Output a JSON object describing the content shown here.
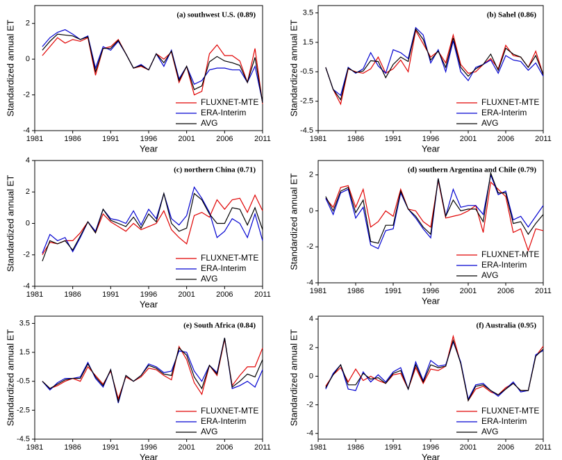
{
  "chart_data": [
    {
      "type": "line",
      "title": "(a) southwest U.S. (0.89)",
      "xlabel": "Year",
      "ylabel": "Standardized annual ET",
      "x": [
        1982,
        1983,
        1984,
        1985,
        1986,
        1987,
        1988,
        1989,
        1990,
        1991,
        1992,
        1993,
        1994,
        1995,
        1996,
        1997,
        1998,
        1999,
        2000,
        2001,
        2002,
        2003,
        2004,
        2005,
        2006,
        2007,
        2008,
        2009,
        2010,
        2011
      ],
      "xlim": [
        1981,
        2011
      ],
      "xticks": [
        1981,
        1986,
        1991,
        1996,
        2001,
        2006,
        2011
      ],
      "ylim": [
        -4,
        3
      ],
      "yticks": [
        -4,
        -2,
        0,
        2
      ],
      "legend": "lower right",
      "series": [
        {
          "name": "FLUXNET-MTE",
          "color": "#e00000",
          "values": [
            0.2,
            0.7,
            1.2,
            0.9,
            1.1,
            1.0,
            1.2,
            -0.9,
            0.6,
            0.7,
            1.1,
            0.3,
            -0.5,
            -0.4,
            -0.6,
            0.3,
            0.0,
            0.4,
            -1.3,
            -0.4,
            -2.0,
            -1.8,
            0.3,
            0.8,
            0.2,
            0.2,
            -0.1,
            -1.3,
            0.6,
            -2.5
          ]
        },
        {
          "name": "ERA-Interim",
          "color": "#0000d0",
          "values": [
            0.7,
            1.2,
            1.5,
            1.65,
            1.4,
            1.1,
            1.3,
            -0.5,
            0.7,
            0.5,
            1.0,
            0.3,
            -0.5,
            -0.3,
            -0.6,
            0.3,
            -0.4,
            0.5,
            -1.1,
            -0.4,
            -1.4,
            -1.2,
            -0.6,
            -0.5,
            -0.5,
            -0.6,
            -0.6,
            -1.3,
            -0.4,
            -2.4
          ]
        },
        {
          "name": "AVG",
          "color": "#000000",
          "values": [
            0.5,
            1.0,
            1.4,
            1.35,
            1.3,
            1.1,
            1.25,
            -0.7,
            0.6,
            0.6,
            1.05,
            0.3,
            -0.5,
            -0.35,
            -0.6,
            0.3,
            -0.2,
            0.45,
            -1.2,
            -0.4,
            -1.7,
            -1.5,
            -0.15,
            0.15,
            -0.1,
            -0.2,
            -0.35,
            -1.3,
            0.1,
            -2.45
          ]
        }
      ]
    },
    {
      "type": "line",
      "title": "(b) Sahel (0.86)",
      "xlabel": "Year",
      "ylabel": "Standardized annual ET",
      "x": [
        1982,
        1983,
        1984,
        1985,
        1986,
        1987,
        1988,
        1989,
        1990,
        1991,
        1992,
        1993,
        1994,
        1995,
        1996,
        1997,
        1998,
        1999,
        2000,
        2001,
        2002,
        2003,
        2004,
        2005,
        2006,
        2007,
        2008,
        2009,
        2010,
        2011
      ],
      "xlim": [
        1981,
        2011
      ],
      "xticks": [
        1981,
        1986,
        1991,
        1996,
        2001,
        2006,
        2011
      ],
      "ylim": [
        -4.5,
        4
      ],
      "yticks": [
        -4.5,
        -2.5,
        -0.5,
        1.5,
        3.5
      ],
      "legend": "lower right",
      "series": [
        {
          "name": "FLUXNET-MTE",
          "color": "#e00000",
          "values": [
            -0.2,
            -1.7,
            -2.7,
            -0.3,
            -0.5,
            -0.6,
            -0.3,
            0.5,
            -0.6,
            -0.3,
            0.3,
            -0.5,
            2.3,
            1.4,
            0.5,
            0.9,
            0.1,
            2.0,
            0.0,
            -0.6,
            -0.5,
            0.0,
            0.4,
            -0.3,
            1.3,
            0.6,
            0.5,
            -0.2,
            0.9,
            -0.7
          ]
        },
        {
          "name": "ERA-Interim",
          "color": "#0000d0",
          "values": [
            -0.2,
            -1.7,
            -2.1,
            -0.2,
            -0.6,
            -0.3,
            0.8,
            -0.1,
            -0.6,
            1.0,
            0.8,
            0.4,
            2.5,
            2.0,
            0.1,
            1.0,
            -0.5,
            1.6,
            -0.5,
            -1.1,
            -0.2,
            0.0,
            0.3,
            -0.6,
            0.6,
            0.3,
            0.2,
            -0.4,
            0.1,
            -0.8
          ]
        },
        {
          "name": "AVG",
          "color": "#000000",
          "values": [
            -0.2,
            -1.7,
            -2.4,
            -0.25,
            -0.55,
            -0.45,
            0.25,
            0.2,
            -0.9,
            0.0,
            0.5,
            0.2,
            2.4,
            1.7,
            0.3,
            0.9,
            -0.2,
            1.8,
            -0.2,
            -0.8,
            -0.3,
            0.0,
            0.7,
            -0.4,
            1.1,
            0.7,
            0.5,
            -0.2,
            0.6,
            -0.7
          ]
        }
      ]
    },
    {
      "type": "line",
      "title": "(c) northern China (0.71)",
      "xlabel": "Year",
      "ylabel": "Standardized annual ET",
      "x": [
        1982,
        1983,
        1984,
        1985,
        1986,
        1987,
        1988,
        1989,
        1990,
        1991,
        1992,
        1993,
        1994,
        1995,
        1996,
        1997,
        1998,
        1999,
        2000,
        2001,
        2002,
        2003,
        2004,
        2005,
        2006,
        2007,
        2008,
        2009,
        2010,
        2011
      ],
      "xlim": [
        1981,
        2011
      ],
      "xticks": [
        1981,
        1986,
        1991,
        1996,
        2001,
        2006,
        2011
      ],
      "ylim": [
        -4,
        4
      ],
      "yticks": [
        -4,
        -2,
        0,
        2,
        4
      ],
      "legend": "lower right",
      "series": [
        {
          "name": "FLUXNET-MTE",
          "color": "#e00000",
          "values": [
            -2.0,
            -1.2,
            -1.3,
            -1.1,
            -1.1,
            -0.6,
            0.1,
            -0.6,
            0.6,
            0.1,
            -0.2,
            -0.5,
            0.0,
            -0.4,
            -0.2,
            0.0,
            0.8,
            -0.4,
            -0.9,
            -1.3,
            0.5,
            0.7,
            0.4,
            1.5,
            0.9,
            1.5,
            1.6,
            0.7,
            1.8,
            0.8
          ]
        },
        {
          "name": "ERA-Interim",
          "color": "#0000d0",
          "values": [
            -1.9,
            -0.7,
            -1.1,
            -0.9,
            -1.8,
            -0.9,
            0.1,
            -0.5,
            0.9,
            0.3,
            0.2,
            0.0,
            0.8,
            -0.1,
            0.9,
            0.3,
            1.9,
            0.3,
            -0.1,
            0.5,
            2.3,
            1.6,
            0.7,
            -0.9,
            -0.5,
            0.3,
            0.0,
            -0.9,
            0.6,
            -1.1
          ]
        },
        {
          "name": "AVG",
          "color": "#000000",
          "values": [
            -2.4,
            -1.1,
            -1.3,
            -1.1,
            -1.7,
            -0.8,
            0.1,
            -0.6,
            0.9,
            0.2,
            0.0,
            -0.2,
            0.4,
            -0.3,
            0.6,
            0.1,
            1.9,
            0.0,
            -0.5,
            -0.3,
            1.9,
            1.5,
            0.6,
            0.0,
            0.0,
            1.0,
            0.9,
            -0.1,
            1.0,
            -0.4
          ]
        }
      ]
    },
    {
      "type": "line",
      "title": "(d) southern Argentina and Chile (0.79)",
      "xlabel": "Year",
      "ylabel": "Standardized annual ET",
      "x": [
        1982,
        1983,
        1984,
        1985,
        1986,
        1987,
        1988,
        1989,
        1990,
        1991,
        1992,
        1993,
        1994,
        1995,
        1996,
        1997,
        1998,
        1999,
        2000,
        2001,
        2002,
        2003,
        2004,
        2005,
        2006,
        2007,
        2008,
        2009,
        2010,
        2011
      ],
      "xlim": [
        1981,
        2011
      ],
      "xticks": [
        1981,
        1986,
        1991,
        1996,
        2001,
        2006,
        2011
      ],
      "ylim": [
        -4,
        2.8
      ],
      "yticks": [
        -4,
        -2,
        0,
        2
      ],
      "legend": "lower right",
      "series": [
        {
          "name": "FLUXNET-MTE",
          "color": "#e00000",
          "values": [
            0.7,
            0.2,
            1.3,
            1.4,
            0.2,
            1.2,
            -0.9,
            -0.6,
            0.0,
            -0.3,
            1.2,
            0.1,
            0.0,
            -0.6,
            -0.9,
            1.7,
            -0.4,
            -0.3,
            -0.2,
            0.0,
            0.3,
            -1.2,
            1.6,
            1.2,
            0.8,
            -1.2,
            -1.0,
            -2.2,
            -1.0,
            -1.1
          ]
        },
        {
          "name": "ERA-Interim",
          "color": "#0000d0",
          "values": [
            0.7,
            -0.2,
            1.0,
            1.2,
            -0.4,
            0.2,
            -1.9,
            -2.1,
            -1.1,
            -1.0,
            1.0,
            0.1,
            -0.4,
            -1.0,
            -1.5,
            1.8,
            -0.3,
            1.2,
            0.2,
            0.3,
            0.3,
            -0.2,
            2.0,
            0.9,
            1.1,
            -0.5,
            -0.3,
            -0.9,
            -0.3,
            0.3
          ]
        },
        {
          "name": "AVG",
          "color": "#000000",
          "values": [
            0.8,
            0.0,
            1.1,
            1.3,
            -0.1,
            0.6,
            -1.7,
            -1.8,
            -0.8,
            -0.8,
            1.1,
            0.1,
            -0.3,
            -0.9,
            -1.3,
            1.8,
            -0.3,
            0.6,
            0.0,
            0.1,
            0.1,
            -0.6,
            2.1,
            1.0,
            1.0,
            -0.7,
            -0.6,
            -1.3,
            -0.7,
            -0.2
          ]
        }
      ]
    },
    {
      "type": "line",
      "title": "(e) South Africa (0.84)",
      "xlabel": "Year",
      "ylabel": "Standardized annual ET",
      "x": [
        1982,
        1983,
        1984,
        1985,
        1986,
        1987,
        1988,
        1989,
        1990,
        1991,
        1992,
        1993,
        1994,
        1995,
        1996,
        1997,
        1998,
        1999,
        2000,
        2001,
        2002,
        2003,
        2004,
        2005,
        2006,
        2007,
        2008,
        2009,
        2010,
        2011
      ],
      "xlim": [
        1981,
        2011
      ],
      "xticks": [
        1981,
        1986,
        1991,
        1996,
        2001,
        2006,
        2011
      ],
      "ylim": [
        -4.5,
        4
      ],
      "yticks": [
        -4.5,
        -2.5,
        -0.5,
        1.5,
        3.5
      ],
      "legend": "lower right",
      "series": [
        {
          "name": "FLUXNET-MTE",
          "color": "#e00000",
          "values": [
            -0.5,
            -1.0,
            -0.8,
            -0.5,
            -0.3,
            -0.5,
            0.5,
            -0.1,
            -0.7,
            0.2,
            -1.7,
            -0.2,
            -0.5,
            -0.2,
            0.4,
            0.3,
            -0.1,
            -0.4,
            1.9,
            1.0,
            -0.6,
            -1.4,
            0.6,
            -0.1,
            2.4,
            -0.8,
            -0.1,
            0.5,
            0.5,
            1.8
          ]
        },
        {
          "name": "ERA-Interim",
          "color": "#0000d0",
          "values": [
            -0.5,
            -1.1,
            -0.6,
            -0.3,
            -0.3,
            -0.2,
            0.8,
            -0.3,
            -0.9,
            0.3,
            -2.0,
            -0.1,
            -0.5,
            -0.1,
            0.7,
            0.5,
            0.1,
            0.2,
            1.6,
            1.5,
            0.2,
            -0.5,
            0.6,
            0.1,
            2.5,
            -1.0,
            -0.8,
            -0.5,
            -0.9,
            0.3
          ]
        },
        {
          "name": "AVG",
          "color": "#000000",
          "values": [
            -0.5,
            -1.0,
            -0.7,
            -0.4,
            -0.3,
            -0.3,
            0.7,
            -0.2,
            -0.8,
            0.3,
            -1.9,
            -0.1,
            -0.5,
            -0.1,
            0.6,
            0.4,
            0.0,
            -0.1,
            1.8,
            1.3,
            -0.2,
            -1.0,
            0.6,
            0.0,
            2.5,
            -0.9,
            -0.5,
            0.0,
            -0.2,
            1.0
          ]
        }
      ]
    },
    {
      "type": "line",
      "title": "(f) Australia (0.95)",
      "xlabel": "Year",
      "ylabel": "Standardized annual ET",
      "x": [
        1982,
        1983,
        1984,
        1985,
        1986,
        1987,
        1988,
        1989,
        1990,
        1991,
        1992,
        1993,
        1994,
        1995,
        1996,
        1997,
        1998,
        1999,
        2000,
        2001,
        2002,
        2003,
        2004,
        2005,
        2006,
        2007,
        2008,
        2009,
        2010,
        2011
      ],
      "xlim": [
        1981,
        2011
      ],
      "xticks": [
        1981,
        1986,
        1991,
        1996,
        2001,
        2006,
        2011
      ],
      "ylim": [
        -4.4,
        4.2
      ],
      "yticks": [
        -4,
        -2,
        0,
        2,
        4
      ],
      "legend": "lower right",
      "series": [
        {
          "name": "FLUXNET-MTE",
          "color": "#e00000",
          "values": [
            -0.7,
            0.1,
            0.6,
            -0.4,
            0.5,
            -0.3,
            0.0,
            -0.3,
            -0.5,
            0.1,
            0.2,
            -0.9,
            0.6,
            -0.5,
            0.5,
            0.4,
            0.7,
            2.8,
            0.9,
            -1.7,
            -0.9,
            -0.7,
            -1.1,
            -1.3,
            -0.8,
            -0.5,
            -1.0,
            -1.0,
            1.4,
            2.1
          ]
        },
        {
          "name": "ERA-Interim",
          "color": "#0000d0",
          "values": [
            -0.9,
            0.2,
            0.8,
            -0.9,
            -1.0,
            0.3,
            -0.4,
            0.1,
            -0.4,
            0.3,
            0.6,
            -0.9,
            1.0,
            -0.3,
            1.1,
            0.7,
            0.8,
            2.4,
            1.0,
            -1.6,
            -0.6,
            -0.5,
            -1.0,
            -1.4,
            -0.9,
            -0.4,
            -1.1,
            -1.0,
            1.5,
            1.8
          ]
        },
        {
          "name": "AVG",
          "color": "#000000",
          "values": [
            -0.8,
            0.1,
            0.8,
            -0.6,
            -0.6,
            0.2,
            -0.2,
            -0.1,
            -0.5,
            0.2,
            0.4,
            -0.9,
            0.8,
            -0.4,
            0.8,
            0.6,
            0.7,
            2.5,
            0.9,
            -1.7,
            -0.7,
            -0.6,
            -1.0,
            -1.3,
            -0.9,
            -0.5,
            -1.0,
            -1.0,
            1.4,
            1.9
          ]
        }
      ]
    }
  ]
}
